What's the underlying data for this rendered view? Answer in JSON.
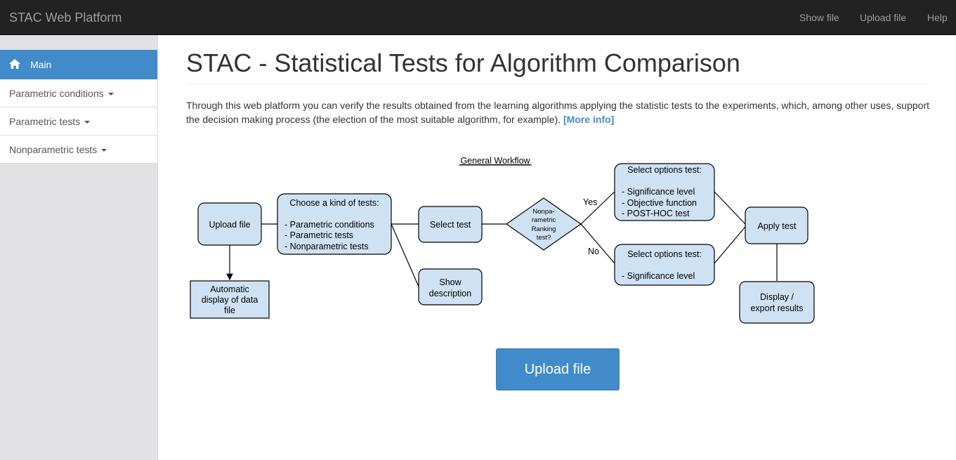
{
  "navbar": {
    "brand": "STAC Web Platform",
    "links": [
      "Show file",
      "Upload file",
      "Help"
    ]
  },
  "sidebar": {
    "items": [
      {
        "label": "Main",
        "icon": "home-icon",
        "active": true
      },
      {
        "label": "Parametric conditions",
        "dropdown": true
      },
      {
        "label": "Parametric tests",
        "dropdown": true
      },
      {
        "label": "Nonparametric tests",
        "dropdown": true
      }
    ]
  },
  "main": {
    "title": "STAC - Statistical Tests for Algorithm Comparison",
    "intro": "Through this web platform you can verify the results obtained from the learning algorithms applying the statistic tests to the experiments, which, among other uses, support the decision making process (the election of the most suitable algorithm, for example).",
    "more_info": "[More info]",
    "upload_button": "Upload file"
  },
  "workflow": {
    "title": "General Workflow",
    "upload_file": "Upload file",
    "auto_display": [
      "Automatic",
      "display of data",
      "file"
    ],
    "choose": [
      "Choose a kind of tests:",
      "",
      "- Parametric conditions",
      "- Parametric tests",
      "- Nonparametric tests"
    ],
    "select_test": "Select test",
    "show_description": [
      "Show",
      "description"
    ],
    "decision": [
      "Nonpa-",
      "rametric",
      "Ranking",
      "test?"
    ],
    "yes": "Yes",
    "no": "No",
    "options_yes": [
      "Select options test:",
      "",
      "- Significance level",
      "- Objective function",
      "- POST-HOC test"
    ],
    "options_no": [
      "Select options test:",
      "",
      "- Significance level"
    ],
    "apply_test": "Apply test",
    "display_export": [
      "Display /",
      "export results"
    ]
  },
  "colors": {
    "navbar_bg": "#222222",
    "accent": "#428bca",
    "sidebar_bg": "#e2e2e4",
    "box_fill": "#cfe2f3"
  }
}
